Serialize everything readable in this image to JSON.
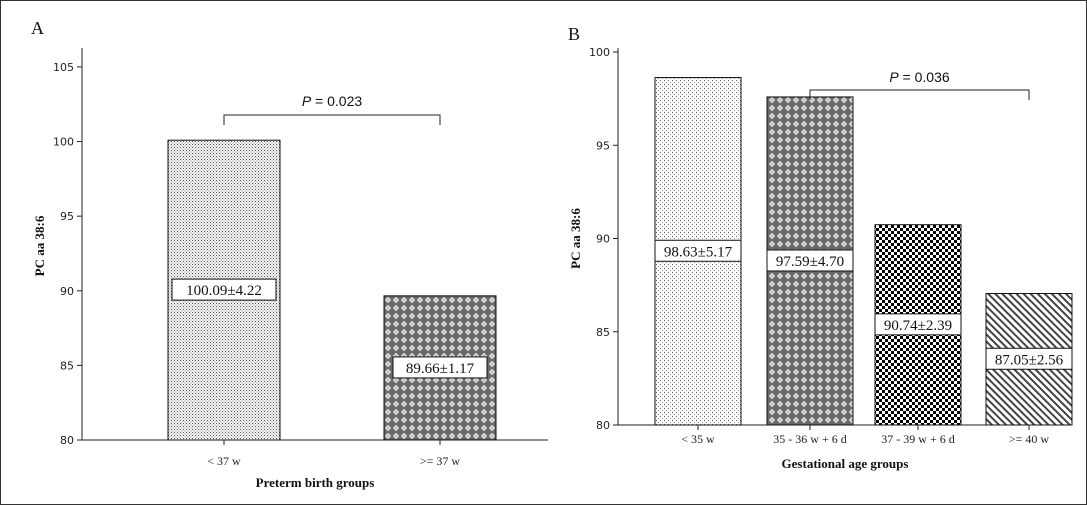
{
  "figure": {
    "panel_labels": [
      "A",
      "B"
    ]
  },
  "chart_data": [
    {
      "type": "bar",
      "panel": "A",
      "categories": [
        "< 37 w",
        ">= 37 w"
      ],
      "values": [
        100.09,
        89.66
      ],
      "value_labels": [
        "100.09±4.22",
        "89.66±1.17"
      ],
      "patterns": [
        "fine-dots",
        "diamond-cross"
      ],
      "title": "",
      "xlabel": "Preterm birth groups",
      "ylabel": "PC aa 38:6",
      "ylim": [
        80,
        106
      ],
      "yticks": [
        80,
        85,
        90,
        95,
        100,
        105
      ],
      "grid": false,
      "significance": {
        "p_label": "P",
        "p_value": "= 0.023",
        "between": [
          0,
          1
        ]
      }
    },
    {
      "type": "bar",
      "panel": "B",
      "categories": [
        "< 35 w",
        "35 - 36 w + 6 d",
        "37 - 39 w + 6 d",
        ">= 40 w"
      ],
      "values": [
        98.63,
        97.59,
        90.74,
        87.05
      ],
      "value_labels": [
        "98.63±5.17",
        "97.59±4.70",
        "90.74±2.39",
        "87.05±2.56"
      ],
      "patterns": [
        "sparse-dots",
        "diamond-cross",
        "checker",
        "diagonal-hatch"
      ],
      "title": "",
      "xlabel": "Gestational age groups",
      "ylabel": "PC aa 38:6",
      "ylim": [
        80,
        100
      ],
      "yticks": [
        80,
        85,
        90,
        95,
        100
      ],
      "grid": false,
      "significance": {
        "p_label": "P",
        "p_value": "= 0.036",
        "between": [
          1,
          3
        ]
      }
    }
  ]
}
